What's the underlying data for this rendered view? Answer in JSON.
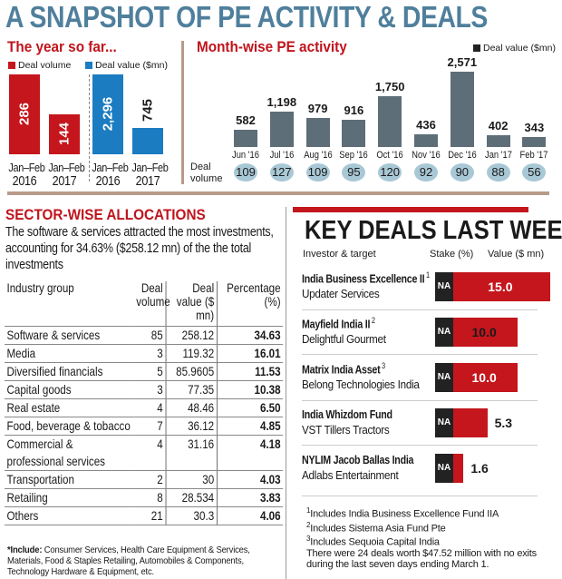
{
  "title": "A SNAPSHOT OF PE ACTIVITY & DEALS",
  "colors": {
    "title": "#4f7f9c",
    "red": "#c4161c",
    "blue": "#1b7cc1",
    "slate": "#5e6e78",
    "circle": "#a9c8d6",
    "divider": "#b89a8a"
  },
  "chart_data": [
    {
      "type": "bar",
      "title": "The year so far...",
      "categories": [
        "Jan–Feb 2016",
        "Jan–Feb 2017"
      ],
      "series": [
        {
          "name": "Deal volume",
          "values": [
            286,
            144
          ],
          "color": "#c4161c"
        },
        {
          "name": "Deal value ($mn)",
          "values": [
            2296,
            745
          ],
          "color": "#1b7cc1"
        }
      ],
      "value_labels": {
        "Deal volume": [
          "286",
          "144"
        ],
        "Deal value ($mn)": [
          "2,296",
          "745"
        ]
      },
      "category_labels": [
        [
          "Jan–Feb",
          "2016"
        ],
        [
          "Jan–Feb",
          "2017"
        ]
      ],
      "legend": "top-left"
    },
    {
      "type": "bar",
      "title": "Month-wise PE activity",
      "categories": [
        "Jun '16",
        "Jul '16",
        "Aug '16",
        "Sep '16",
        "Oct '16",
        "Nov '16",
        "Dec '16",
        "Jan '17",
        "Feb '17"
      ],
      "series": [
        {
          "name": "Deal value ($mn)",
          "values": [
            582,
            1198,
            979,
            916,
            1750,
            436,
            2571,
            402,
            343
          ]
        }
      ],
      "value_labels": [
        "582",
        "1,198",
        "979",
        "916",
        "1,750",
        "436",
        "2,571",
        "402",
        "343"
      ],
      "deal_volume_label": "Deal volume",
      "deal_volume": [
        109,
        127,
        109,
        95,
        120,
        92,
        90,
        88,
        56
      ],
      "legend": "top-right"
    }
  ],
  "sector": {
    "title": "SECTOR-WISE ALLOCATIONS",
    "summary": "The software & services attracted the most investments, accounting for 34.63% ($258.12 mn) of the the total investments",
    "headers": [
      "Industry group",
      "Deal volume",
      "Deal value ($ mn)",
      "Percentage (%)"
    ],
    "rows": [
      [
        "Software & services",
        "85",
        "258.12",
        "34.63"
      ],
      [
        "Media",
        "3",
        "119.32",
        "16.01"
      ],
      [
        "Diversified financials",
        "5",
        "85.9605",
        "11.53"
      ],
      [
        "Capital goods",
        "3",
        "77.35",
        "10.38"
      ],
      [
        "Real estate",
        "4",
        "48.46",
        "6.50"
      ],
      [
        "Food, beverage & tobacco",
        "7",
        "36.12",
        "4.85"
      ],
      [
        "Commercial & professional services",
        "4",
        "31.16",
        "4.18"
      ],
      [
        "Transportation",
        "2",
        "30",
        "4.03"
      ],
      [
        "Retailing",
        "8",
        "28.534",
        "3.83"
      ],
      [
        "Others",
        "21",
        "30.3",
        "4.06"
      ]
    ],
    "footnote_bold": "*Include:",
    "footnote": " Consumer Services, Health Care Equipment & Services, Materials, Food & Staples Retailing, Automobiles & Components, Technology Hardware & Equipment, etc."
  },
  "key_deals": {
    "title": "KEY DEALS LAST WEEK",
    "headers": [
      "Investor & target",
      "Stake (%)",
      "Value ($ mn)"
    ],
    "rows": [
      {
        "investor": "India Business Excellence II",
        "note": "1",
        "target": "Updater Services",
        "stake": "NA",
        "value": 15.0,
        "value_label": "15.0"
      },
      {
        "investor": "Mayfield India II",
        "note": "2",
        "target": "Delightful Gourmet",
        "stake": "NA",
        "value": 10.0,
        "value_label": "10.0"
      },
      {
        "investor": "Matrix India Asset",
        "note": "3",
        "target": "Belong Technologies India",
        "stake": "NA",
        "value": 10.0,
        "value_label": "10.0"
      },
      {
        "investor": "India Whizdom Fund",
        "note": "",
        "target": "VST Tillers Tractors",
        "stake": "NA",
        "value": 5.3,
        "value_label": "5.3"
      },
      {
        "investor": "NYLIM Jacob Ballas India",
        "note": "",
        "target": "Adlabs Entertainment",
        "stake": "NA",
        "value": 1.6,
        "value_label": "1.6"
      }
    ],
    "footnotes": [
      {
        "n": "1",
        "text": "Includes India Business Excellence Fund IIA"
      },
      {
        "n": "2",
        "text": "Includes Sistema Asia Fund Pte"
      },
      {
        "n": "3",
        "text": "Includes Sequoia Capital India"
      }
    ],
    "summary": "There were 24 deals worth $47.52 million with no exits during the last seven days ending March 1."
  }
}
